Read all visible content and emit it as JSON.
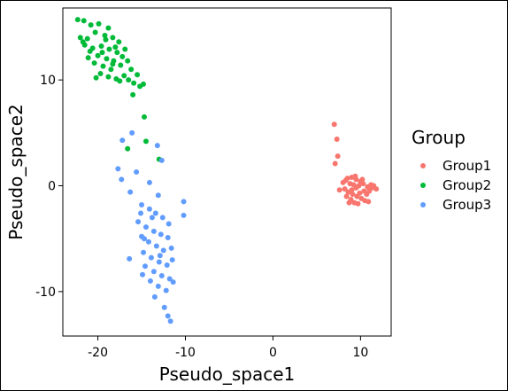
{
  "chart_data": {
    "type": "scatter",
    "xlabel": "Pseudo_space1",
    "ylabel": "Pseudo_space2",
    "xlim": [
      -24,
      13.5
    ],
    "ylim": [
      -14.2,
      16.8
    ],
    "xticks": [
      -20,
      -10,
      0,
      10
    ],
    "yticks": [
      10,
      0,
      -10
    ],
    "xtick_labels": [
      "-20",
      "-10",
      "0",
      "10"
    ],
    "ytick_labels": [
      "10",
      "0",
      "-10"
    ],
    "grid": false,
    "legend": {
      "title": "Group",
      "placement": "right",
      "entries": [
        "Group1",
        "Group2",
        "Group3"
      ]
    },
    "series": [
      {
        "name": "Group1",
        "color": "#F8766D",
        "points": [
          [
            7.0,
            5.8
          ],
          [
            7.3,
            4.4
          ],
          [
            7.4,
            2.8
          ],
          [
            7.1,
            2.1
          ],
          [
            8.5,
            0.7
          ],
          [
            9.0,
            0.8
          ],
          [
            9.5,
            0.6
          ],
          [
            10.0,
            0.4
          ],
          [
            8.8,
            0.2
          ],
          [
            9.2,
            0.1
          ],
          [
            9.8,
            0.0
          ],
          [
            10.3,
            0.2
          ],
          [
            10.8,
            -0.1
          ],
          [
            11.3,
            -0.2
          ],
          [
            11.8,
            -0.3
          ],
          [
            8.2,
            -0.3
          ],
          [
            8.6,
            -0.6
          ],
          [
            9.1,
            -0.8
          ],
          [
            9.6,
            -1.0
          ],
          [
            10.1,
            -1.2
          ],
          [
            10.5,
            -1.4
          ],
          [
            9.3,
            -1.6
          ],
          [
            8.9,
            -1.3
          ],
          [
            10.7,
            -0.8
          ],
          [
            11.0,
            -0.5
          ],
          [
            7.6,
            -0.4
          ],
          [
            8.0,
            0.3
          ],
          [
            9.4,
            0.9
          ],
          [
            10.4,
            -0.5
          ],
          [
            9.7,
            -1.7
          ],
          [
            8.4,
            -1.0
          ],
          [
            11.2,
            0.1
          ],
          [
            9.0,
            -0.4
          ],
          [
            9.9,
            -0.7
          ],
          [
            10.2,
            0.6
          ],
          [
            8.7,
            -1.6
          ],
          [
            10.9,
            -1.5
          ],
          [
            9.5,
            -0.2
          ],
          [
            11.5,
            0.0
          ],
          [
            8.3,
            0.5
          ]
        ]
      },
      {
        "name": "Group2",
        "color": "#00BA38",
        "points": [
          [
            -22.3,
            15.7
          ],
          [
            -21.6,
            15.6
          ],
          [
            -20.8,
            15.2
          ],
          [
            -19.9,
            15.3
          ],
          [
            -18.8,
            14.9
          ],
          [
            -20.3,
            14.5
          ],
          [
            -19.2,
            14.2
          ],
          [
            -18.3,
            14.0
          ],
          [
            -17.6,
            13.6
          ],
          [
            -21.2,
            13.9
          ],
          [
            -22.0,
            14.0
          ],
          [
            -21.5,
            13.3
          ],
          [
            -20.6,
            13.0
          ],
          [
            -19.6,
            13.2
          ],
          [
            -18.7,
            12.9
          ],
          [
            -17.8,
            12.6
          ],
          [
            -17.2,
            12.2
          ],
          [
            -20.0,
            12.3
          ],
          [
            -19.0,
            12.0
          ],
          [
            -18.2,
            11.8
          ],
          [
            -21.1,
            12.1
          ],
          [
            -20.4,
            11.6
          ],
          [
            -19.4,
            11.3
          ],
          [
            -18.5,
            11.0
          ],
          [
            -17.4,
            11.4
          ],
          [
            -16.6,
            11.8
          ],
          [
            -16.2,
            11.0
          ],
          [
            -19.7,
            10.6
          ],
          [
            -18.8,
            10.3
          ],
          [
            -17.9,
            10.1
          ],
          [
            -17.0,
            10.4
          ],
          [
            -16.5,
            10.0
          ],
          [
            -20.2,
            10.2
          ],
          [
            -15.9,
            9.7
          ],
          [
            -15.2,
            9.4
          ],
          [
            -19.5,
            12.6
          ],
          [
            -18.0,
            13.1
          ],
          [
            -20.9,
            12.7
          ],
          [
            -17.5,
            9.9
          ],
          [
            -16.0,
            8.6
          ],
          [
            -14.8,
            9.6
          ],
          [
            -14.7,
            6.5
          ],
          [
            -14.5,
            4.2
          ],
          [
            -16.6,
            3.5
          ],
          [
            -13.0,
            2.5
          ],
          [
            -18.3,
            11.5
          ],
          [
            -19.1,
            13.8
          ],
          [
            -16.9,
            12.9
          ],
          [
            -21.7,
            13.6
          ],
          [
            -15.5,
            10.5
          ]
        ]
      },
      {
        "name": "Group3",
        "color": "#619CFF",
        "points": [
          [
            -17.2,
            4.3
          ],
          [
            -16.1,
            5.0
          ],
          [
            -13.2,
            3.8
          ],
          [
            -12.7,
            2.4
          ],
          [
            -17.7,
            1.6
          ],
          [
            -17.3,
            0.6
          ],
          [
            -15.6,
            1.3
          ],
          [
            -16.3,
            -0.6
          ],
          [
            -14.1,
            0.3
          ],
          [
            -13.1,
            -0.9
          ],
          [
            -10.2,
            -1.5
          ],
          [
            -10.2,
            -2.8
          ],
          [
            -15.0,
            -1.8
          ],
          [
            -14.1,
            -2.2
          ],
          [
            -13.4,
            -2.6
          ],
          [
            -12.6,
            -3.0
          ],
          [
            -15.4,
            -3.4
          ],
          [
            -14.5,
            -3.9
          ],
          [
            -13.6,
            -4.3
          ],
          [
            -12.8,
            -4.6
          ],
          [
            -12.0,
            -4.9
          ],
          [
            -15.0,
            -4.8
          ],
          [
            -14.2,
            -5.3
          ],
          [
            -13.3,
            -5.7
          ],
          [
            -12.5,
            -6.1
          ],
          [
            -11.6,
            -5.9
          ],
          [
            -14.8,
            -6.3
          ],
          [
            -13.9,
            -6.8
          ],
          [
            -13.0,
            -7.2
          ],
          [
            -12.1,
            -7.5
          ],
          [
            -14.6,
            -7.6
          ],
          [
            -13.6,
            -8.1
          ],
          [
            -12.7,
            -8.5
          ],
          [
            -11.8,
            -8.8
          ],
          [
            -14.0,
            -9.0
          ],
          [
            -13.1,
            -9.5
          ],
          [
            -12.2,
            -9.9
          ],
          [
            -16.4,
            -6.9
          ],
          [
            -11.5,
            -7.0
          ],
          [
            -12.4,
            -11.5
          ],
          [
            -12.0,
            -12.3
          ],
          [
            -11.7,
            -12.8
          ],
          [
            -14.9,
            -8.4
          ],
          [
            -11.4,
            -9.1
          ],
          [
            -13.8,
            -3.0
          ],
          [
            -14.7,
            -5.0
          ],
          [
            -12.9,
            -6.6
          ],
          [
            -13.5,
            -10.5
          ],
          [
            -15.1,
            -2.6
          ],
          [
            -11.9,
            -3.6
          ]
        ]
      }
    ]
  }
}
